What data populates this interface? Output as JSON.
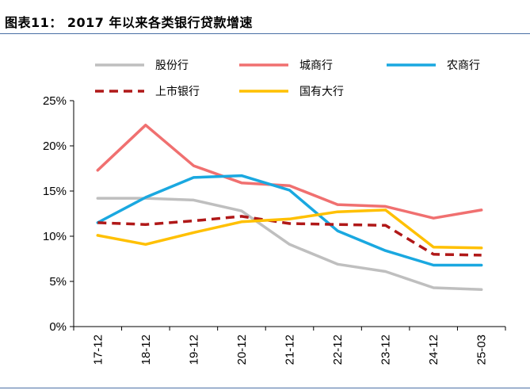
{
  "header": {
    "title": "图表11：  2017 年以来各类银行贷款增速"
  },
  "chart_data": {
    "type": "line",
    "title": "",
    "xlabel": "",
    "ylabel": "",
    "categories": [
      "17-12",
      "18-12",
      "19-12",
      "20-12",
      "21-12",
      "22-12",
      "23-12",
      "24-12",
      "25-03"
    ],
    "ylim": [
      0,
      25
    ],
    "y_ticks": [
      0,
      5,
      10,
      15,
      20,
      25
    ],
    "y_tick_labels": [
      "0%",
      "5%",
      "10%",
      "15%",
      "20%",
      "25%"
    ],
    "grid": false,
    "legend_position": "top",
    "series": [
      {
        "name": "股份行",
        "color": "#bfbfbf",
        "dashed": false,
        "values": [
          14.2,
          14.2,
          14.0,
          12.8,
          9.1,
          6.9,
          6.1,
          4.3,
          4.1
        ]
      },
      {
        "name": "城商行",
        "color": "#f07070",
        "dashed": false,
        "values": [
          17.3,
          22.3,
          17.8,
          15.9,
          15.6,
          13.5,
          13.3,
          12.0,
          12.9
        ]
      },
      {
        "name": "农商行",
        "color": "#1aa8e0",
        "dashed": false,
        "values": [
          11.5,
          14.3,
          16.5,
          16.7,
          15.1,
          10.6,
          8.4,
          6.8,
          6.8
        ]
      },
      {
        "name": "上市银行",
        "color": "#b01818",
        "dashed": true,
        "values": [
          11.5,
          11.3,
          11.7,
          12.2,
          11.4,
          11.3,
          11.2,
          8.0,
          7.9
        ]
      },
      {
        "name": "国有大行",
        "color": "#ffc000",
        "dashed": false,
        "values": [
          10.1,
          9.1,
          10.4,
          11.6,
          11.9,
          12.7,
          12.9,
          8.8,
          8.7
        ]
      }
    ]
  }
}
